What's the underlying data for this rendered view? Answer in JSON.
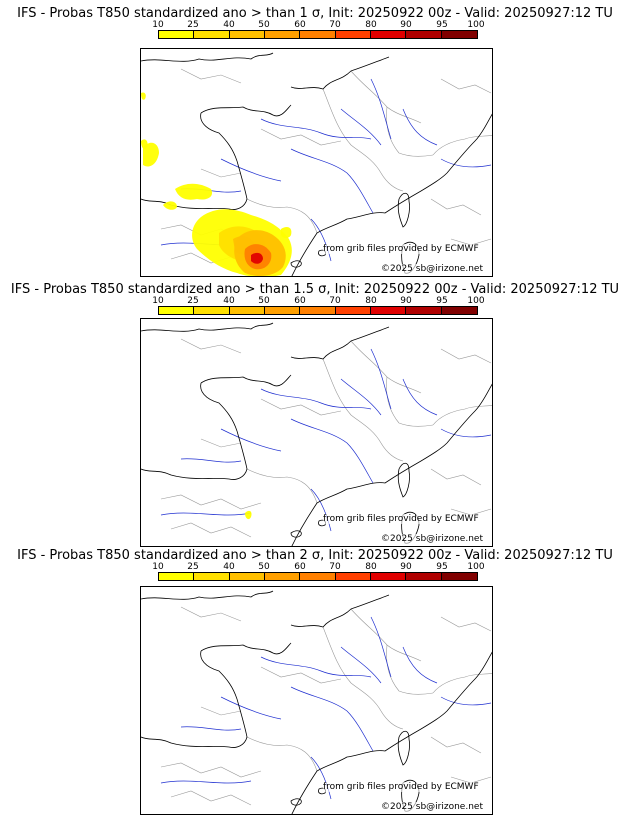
{
  "panels": [
    {
      "title": "IFS - Probas T850  standardized ano > than 1 σ, Init: 20250922 00z - Valid: 20250927:12 TU",
      "anomaly_level": "1 σ",
      "has_probability_field": true
    },
    {
      "title": "IFS - Probas T850  standardized ano > than 1.5 σ, Init: 20250922 00z - Valid: 20250927:12 TU",
      "anomaly_level": "1.5 σ",
      "has_probability_field": true
    },
    {
      "title": "IFS - Probas T850  standardized ano > than 2 σ, Init: 20250922 00z - Valid: 20250927:12 TU",
      "anomaly_level": "2 σ",
      "has_probability_field": false
    }
  ],
  "legend": {
    "ticks": [
      "10",
      "25",
      "40",
      "50",
      "60",
      "70",
      "80",
      "90",
      "95",
      "100"
    ],
    "colors": [
      "#ffff00",
      "#ffe000",
      "#ffc000",
      "#ffa000",
      "#ff8000",
      "#ff4000",
      "#e00000",
      "#b00000",
      "#800000"
    ]
  },
  "credits": {
    "source": "from grib files provided by ECMWF",
    "copyright": "©2025 sb@irizone.net"
  },
  "colors": {
    "coastline": "#000000",
    "borders": "#9a9a9a",
    "rivers": "#2030d0"
  }
}
